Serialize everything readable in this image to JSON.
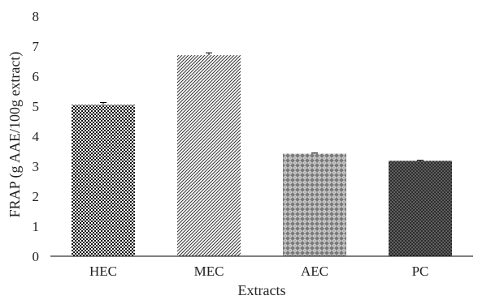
{
  "chart_data": {
    "type": "bar",
    "title": "",
    "xlabel": "Extracts",
    "ylabel": "FRAP (g AAE/100g extract)",
    "categories": [
      "HEC",
      "MEC",
      "AEC",
      "PC"
    ],
    "values": [
      5.05,
      6.7,
      3.42,
      3.18
    ],
    "errors": [
      0.07,
      0.08,
      0.02,
      0.02
    ],
    "ylim": [
      0,
      8
    ],
    "yticks": [
      "0",
      "1",
      "2",
      "3",
      "4",
      "5",
      "6",
      "7",
      "8"
    ],
    "grid": false,
    "legend": "none",
    "bar_patterns": [
      "checker",
      "diagonal",
      "diamond",
      "dots"
    ]
  }
}
